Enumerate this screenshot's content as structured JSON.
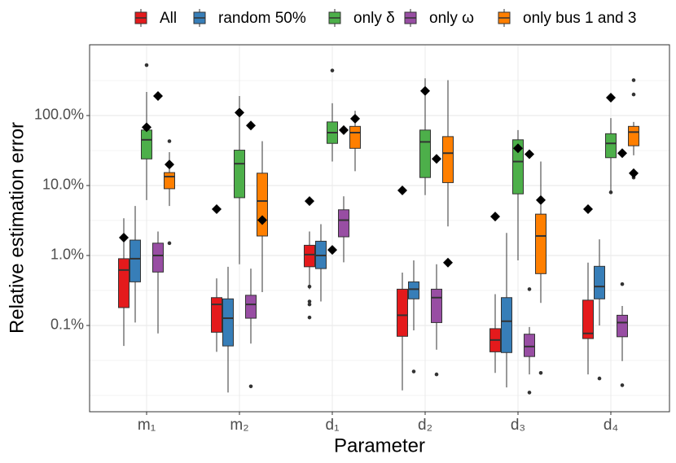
{
  "chart_data": {
    "type": "box",
    "x_label": "Parameter",
    "y_label": "Relative estimation error",
    "categories": [
      "m₁",
      "m₂",
      "d₁",
      "d₂",
      "d₃",
      "d₄"
    ],
    "log_y": true,
    "grid": true,
    "legend": "top",
    "ylim": [
      0.00585,
      1027
    ],
    "yticks": [
      {
        "value": 0.1,
        "label": "0.1%"
      },
      {
        "value": 1,
        "label": "1.0%"
      },
      {
        "value": 10,
        "label": "10.0%"
      },
      {
        "value": 100,
        "label": "100.0%"
      }
    ],
    "series": [
      {
        "name": "All",
        "color": "#e41a1c",
        "boxes": [
          {
            "low": 0.051,
            "q1": 0.18,
            "median": 0.62,
            "q3": 0.9,
            "high": 3.4,
            "outliers": []
          },
          {
            "low": 0.042,
            "q1": 0.08,
            "median": 0.2,
            "q3": 0.25,
            "high": 0.47,
            "outliers": []
          },
          {
            "low": 0.33,
            "q1": 0.69,
            "median": 1.03,
            "q3": 1.4,
            "high": 2.2,
            "outliers": [
              0.36,
              0.22,
              0.2,
              0.13
            ]
          },
          {
            "low": 0.0118,
            "q1": 0.07,
            "median": 0.14,
            "q3": 0.33,
            "high": 0.57,
            "outliers": []
          },
          {
            "low": 0.021,
            "q1": 0.042,
            "median": 0.062,
            "q3": 0.09,
            "high": 0.28,
            "outliers": []
          },
          {
            "low": 0.02,
            "q1": 0.065,
            "median": 0.077,
            "q3": 0.23,
            "high": 0.79,
            "outliers": []
          }
        ],
        "markers": [
          1.8,
          4.6,
          6.0,
          8.5,
          3.6,
          4.6
        ]
      },
      {
        "name": "random 50%",
        "color": "#377eb8",
        "boxes": [
          {
            "low": 0.11,
            "q1": 0.42,
            "median": 0.9,
            "q3": 1.66,
            "high": 5.1,
            "outliers": []
          },
          {
            "low": 0.011,
            "q1": 0.051,
            "median": 0.127,
            "q3": 0.24,
            "high": 0.69,
            "outliers": []
          },
          {
            "low": 0.22,
            "q1": 0.65,
            "median": 1.0,
            "q3": 1.6,
            "high": 2.8,
            "outliers": []
          },
          {
            "low": 0.085,
            "q1": 0.24,
            "median": 0.33,
            "q3": 0.42,
            "high": 0.85,
            "outliers": [
              0.022
            ]
          },
          {
            "low": 0.013,
            "q1": 0.041,
            "median": 0.115,
            "q3": 0.25,
            "high": 2.1,
            "outliers": []
          },
          {
            "low": 0.1,
            "q1": 0.24,
            "median": 0.36,
            "q3": 0.7,
            "high": 1.7,
            "outliers": [
              0.0175
            ]
          }
        ],
        "markers": [
          null,
          null,
          null,
          null,
          null,
          null
        ]
      },
      {
        "name": "only δ",
        "color": "#4daf4a",
        "boxes": [
          {
            "low": 6.2,
            "q1": 24,
            "median": 45,
            "q3": 62,
            "high": 217,
            "outliers": [
              525
            ]
          },
          {
            "low": 0.75,
            "q1": 6.7,
            "median": 20.5,
            "q3": 32,
            "high": 190,
            "outliers": []
          },
          {
            "low": 22,
            "q1": 40,
            "median": 57,
            "q3": 81,
            "high": 150,
            "outliers": [
              440
            ]
          },
          {
            "low": 7.3,
            "q1": 13,
            "median": 42,
            "q3": 62,
            "high": 340,
            "outliers": []
          },
          {
            "low": 0.85,
            "q1": 7.6,
            "median": 22,
            "q3": 45,
            "high": 62,
            "outliers": []
          },
          {
            "low": 8.1,
            "q1": 25,
            "median": 40,
            "q3": 55,
            "high": 92,
            "outliers": [
              8
            ]
          }
        ],
        "markers": [
          68,
          110,
          1.2,
          225,
          34,
          180
        ]
      },
      {
        "name": "only ω",
        "color": "#984ea3",
        "boxes": [
          {
            "low": 0.077,
            "q1": 0.58,
            "median": 1.0,
            "q3": 1.5,
            "high": 2.2,
            "outliers": []
          },
          {
            "low": 0.055,
            "q1": 0.127,
            "median": 0.2,
            "q3": 0.27,
            "high": 0.65,
            "outliers": [
              0.0135
            ]
          },
          {
            "low": 0.8,
            "q1": 1.85,
            "median": 3.2,
            "q3": 4.5,
            "high": 7,
            "outliers": []
          },
          {
            "low": 0.045,
            "q1": 0.11,
            "median": 0.25,
            "q3": 0.33,
            "high": 0.75,
            "outliers": [
              0.02
            ]
          },
          {
            "low": 0.02,
            "q1": 0.036,
            "median": 0.05,
            "q3": 0.075,
            "high": 0.095,
            "outliers": [
              0.33,
              0.011
            ]
          },
          {
            "low": 0.031,
            "q1": 0.069,
            "median": 0.11,
            "q3": 0.14,
            "high": 0.19,
            "outliers": [
              0.39,
              0.014
            ]
          }
        ],
        "markers": [
          190,
          72,
          62,
          24,
          28,
          29
        ]
      },
      {
        "name": "only bus 1 and 3",
        "color": "#ff7f00",
        "boxes": [
          {
            "low": 5.1,
            "q1": 9,
            "median": 13.4,
            "q3": 15.3,
            "high": 30,
            "outliers": [
              43,
              1.5
            ]
          },
          {
            "low": 0.3,
            "q1": 1.9,
            "median": 6,
            "q3": 15,
            "high": 43,
            "outliers": []
          },
          {
            "low": 16,
            "q1": 34,
            "median": 57,
            "q3": 70,
            "high": 117,
            "outliers": []
          },
          {
            "low": 2.6,
            "q1": 11,
            "median": 29,
            "q3": 50,
            "high": 320,
            "outliers": []
          },
          {
            "low": 0.21,
            "q1": 0.55,
            "median": 1.9,
            "q3": 3.9,
            "high": 22,
            "outliers": [
              0.021
            ]
          },
          {
            "low": 27,
            "q1": 37,
            "median": 58,
            "q3": 70,
            "high": 81,
            "outliers": [
              320,
              200,
              14.5,
              13
            ]
          }
        ],
        "markers": [
          20,
          3.2,
          90,
          0.79,
          6.2,
          15
        ]
      }
    ]
  }
}
